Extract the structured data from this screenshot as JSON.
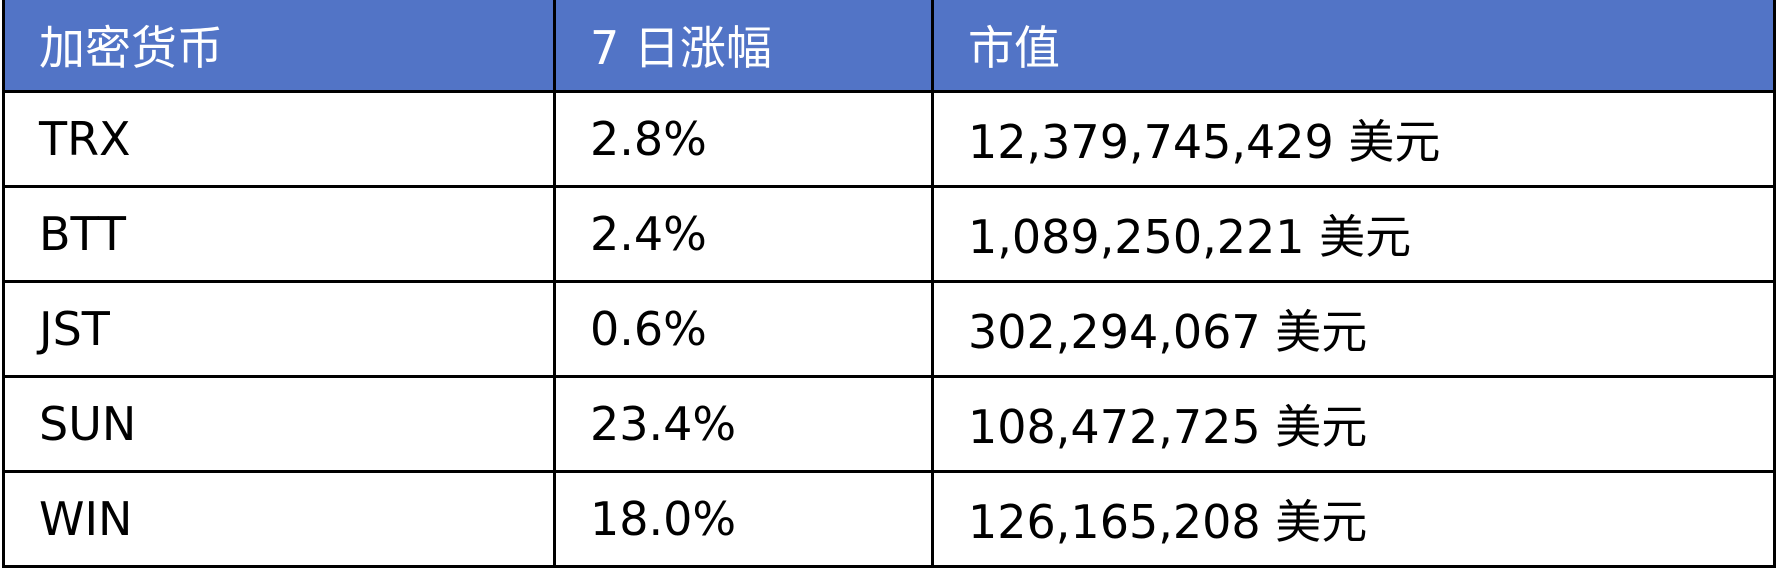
{
  "table": {
    "header_bg": "#5274c6",
    "headers": [
      "加密货币",
      "7 日涨幅",
      "市值"
    ],
    "rows": [
      [
        "TRX",
        "2.8%",
        "12,379,745,429 美元"
      ],
      [
        "BTT",
        "2.4%",
        "1,089,250,221 美元"
      ],
      [
        "JST",
        "0.6%",
        "302,294,067 美元"
      ],
      [
        "SUN",
        "23.4%",
        "108,472,725 美元"
      ],
      [
        "WIN",
        "18.0%",
        "126,165,208 美元"
      ]
    ]
  }
}
